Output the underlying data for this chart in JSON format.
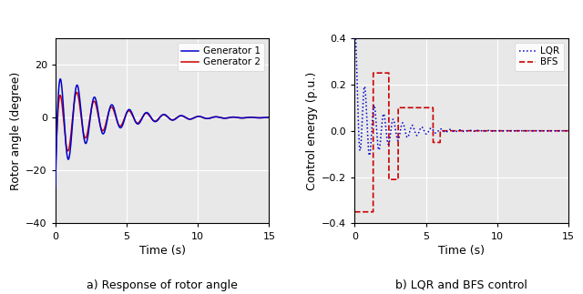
{
  "left_ylabel": "Rotor angle (degree)",
  "left_xlabel": "Time (s)",
  "left_xlim": [
    0,
    15
  ],
  "left_ylim": [
    -40,
    30
  ],
  "left_yticks": [
    -40,
    -20,
    0,
    20
  ],
  "left_xticks": [
    0,
    5,
    10,
    15
  ],
  "left_caption": "a) Response of rotor angle",
  "left_legend": [
    "Generator 1",
    "Generator 2"
  ],
  "right_ylabel": "Control energy (p.u.)",
  "right_xlabel": "Time (s)",
  "right_xlim": [
    0,
    15
  ],
  "right_ylim": [
    -0.4,
    0.4
  ],
  "right_yticks": [
    -0.4,
    -0.2,
    0.0,
    0.2,
    0.4
  ],
  "right_xticks": [
    0,
    5,
    10,
    15
  ],
  "right_caption": "b) LQR and BFS control",
  "right_legend": [
    "LQR",
    "BFS"
  ],
  "bg_color": "#e8e8e8",
  "grid_color": "#ffffff",
  "grid_alpha": 1.0
}
